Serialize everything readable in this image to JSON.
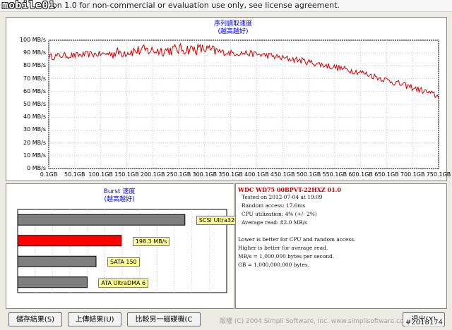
{
  "window": {
    "logo": "mobile01",
    "title": "on 1.0 for non-commercial or evaluation use only, see license agreement."
  },
  "transfer_chart": {
    "title_line1": "序列讀取速度",
    "title_line2": "(越高越好)",
    "y_ticks": [
      "100 MB/s",
      "90 MB/s",
      "80 MB/s",
      "70 MB/s",
      "60 MB/s",
      "50 MB/s",
      "40 MB/s",
      "30 MB/s",
      "20 MB/s",
      "10 MB/s",
      "0 MB/s"
    ],
    "x_ticks": [
      "0.1GB",
      "50.1GB",
      "100.1GB",
      "150.1GB",
      "200.1GB",
      "250.1GB",
      "300.1GB",
      "350.1GB",
      "400.1GB",
      "450.1GB",
      "500.1GB",
      "550.1GB",
      "600.1GB",
      "650.1GB",
      "700.1GB",
      "750.1GB"
    ],
    "line_color": "#cc0000"
  },
  "chart_data": [
    {
      "type": "line",
      "title": "序列讀取速度 (越高越好)",
      "xlabel": "",
      "ylabel": "",
      "ylim": [
        0,
        100
      ],
      "xlim": [
        0.1,
        750.1
      ],
      "x": [
        0.1,
        25,
        50,
        75,
        100,
        125,
        150,
        175,
        200,
        225,
        250,
        275,
        300,
        325,
        350,
        375,
        400,
        425,
        450,
        475,
        500,
        525,
        550,
        575,
        600,
        625,
        650,
        675,
        700,
        725,
        750.1
      ],
      "series": [
        {
          "values": [
            87,
            88,
            88,
            89,
            89,
            90,
            91,
            92,
            92,
            92,
            93,
            93,
            93,
            91,
            90,
            90,
            89,
            88,
            86,
            85,
            83,
            81,
            79,
            77,
            75,
            72,
            69,
            66,
            63,
            60,
            56
          ]
        }
      ]
    },
    {
      "type": "bar",
      "title": "Burst 速度 (越高越好)",
      "categories": [
        "SCSI Ultra320",
        "198.3 MB/s",
        "SATA 150",
        "ATA UltraDMA 6"
      ],
      "values": [
        320,
        198.3,
        150,
        133
      ],
      "xlim": [
        0,
        400
      ]
    }
  ],
  "burst": {
    "title_line1": "Burst 速度",
    "title_line2": "(越高越好)",
    "bars": [
      {
        "label": "SCSI Ultra320",
        "value": 320,
        "color": "#7f7f7f"
      },
      {
        "label": "198.3 MB/s",
        "value": 198.3,
        "color": "#ff0000"
      },
      {
        "label": "SATA 150",
        "value": 150,
        "color": "#7f7f7f"
      },
      {
        "label": "ATA UltraDMA 6",
        "value": 133,
        "color": "#7f7f7f"
      }
    ]
  },
  "info": {
    "drive": "WDC WD75 00BPVT-22HXZ 01.0",
    "lines": [
      "Tested on 2012-07-04 at 19:09",
      "Random access: 17.6ms",
      "CPU utilization: 4% (+/- 2%)",
      "Average read: 82.0 MB/s"
    ],
    "notes": [
      "Lower is better for CPU and random access.",
      "Higher is better for average read.",
      "MB/s = 1,000,000 bytes per second.",
      "GB = 1,000,000,000 bytes."
    ]
  },
  "buttons": {
    "save": "儲存結果(S)",
    "upload": "上傳結果(U)",
    "compare": "比較另一磁碟機(C",
    "exit": "退出(X)"
  },
  "footer": {
    "copyright": "版權 (C) 2004 Simpli Software, Inc. www.simplisoftware.com",
    "watermark": "#2018174"
  }
}
